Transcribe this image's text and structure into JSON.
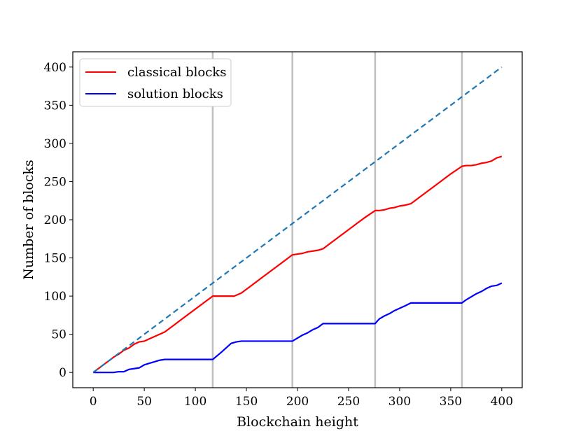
{
  "chart_data": {
    "type": "line",
    "title": "",
    "xlabel": "Blockchain height",
    "ylabel": "Number of blocks",
    "xlim": [
      -20,
      420
    ],
    "ylim": [
      -20,
      420
    ],
    "xticks": [
      0,
      50,
      100,
      150,
      200,
      250,
      300,
      350,
      400
    ],
    "yticks": [
      0,
      50,
      100,
      150,
      200,
      250,
      300,
      350,
      400
    ],
    "grid": false,
    "legend_position": "top-left",
    "vertical_lines": {
      "color": "#bfbfbf",
      "x": [
        117,
        195,
        276,
        361
      ]
    },
    "series": [
      {
        "name": "classical blocks",
        "color": "#ff0000",
        "style": "solid",
        "x": [
          0,
          5,
          10,
          15,
          20,
          25,
          30,
          35,
          40,
          45,
          50,
          55,
          60,
          65,
          70,
          80,
          90,
          100,
          110,
          117,
          125,
          130,
          138,
          145,
          155,
          165,
          175,
          185,
          195,
          200,
          205,
          210,
          215,
          220,
          225,
          235,
          245,
          255,
          265,
          276,
          280,
          285,
          290,
          295,
          300,
          305,
          311,
          320,
          330,
          340,
          350,
          361,
          365,
          370,
          375,
          380,
          385,
          390,
          395,
          400
        ],
        "y": [
          0,
          5,
          10,
          15,
          20,
          24,
          29,
          32,
          37,
          40,
          41,
          44,
          47,
          50,
          53,
          63,
          73,
          83,
          93,
          100,
          100,
          100,
          100,
          104,
          114,
          124,
          134,
          144,
          154,
          155,
          156,
          158,
          159,
          160,
          162,
          172,
          182,
          192,
          202,
          212,
          212,
          213,
          215,
          216,
          218,
          219,
          221,
          230,
          240,
          250,
          260,
          270,
          271,
          271,
          272,
          274,
          275,
          277,
          281,
          283
        ]
      },
      {
        "name": "solution blocks",
        "color": "#0000ff",
        "style": "solid",
        "x": [
          0,
          10,
          20,
          25,
          30,
          35,
          40,
          45,
          50,
          55,
          60,
          65,
          70,
          117,
          125,
          130,
          135,
          140,
          145,
          195,
          200,
          205,
          210,
          215,
          220,
          225,
          276,
          280,
          285,
          290,
          295,
          300,
          305,
          311,
          361,
          365,
          370,
          375,
          380,
          385,
          390,
          395,
          400
        ],
        "y": [
          0,
          0,
          0,
          1,
          1,
          4,
          5,
          6,
          10,
          12,
          14,
          16,
          17,
          17,
          26,
          32,
          38,
          40,
          41,
          41,
          45,
          49,
          52,
          56,
          59,
          64,
          64,
          70,
          74,
          77,
          81,
          84,
          87,
          91,
          91,
          95,
          99,
          103,
          106,
          110,
          113,
          114,
          117
        ]
      },
      {
        "color": "#1f77b4",
        "style": "dashed",
        "x": [
          0,
          400
        ],
        "y": [
          0,
          400
        ]
      }
    ]
  }
}
